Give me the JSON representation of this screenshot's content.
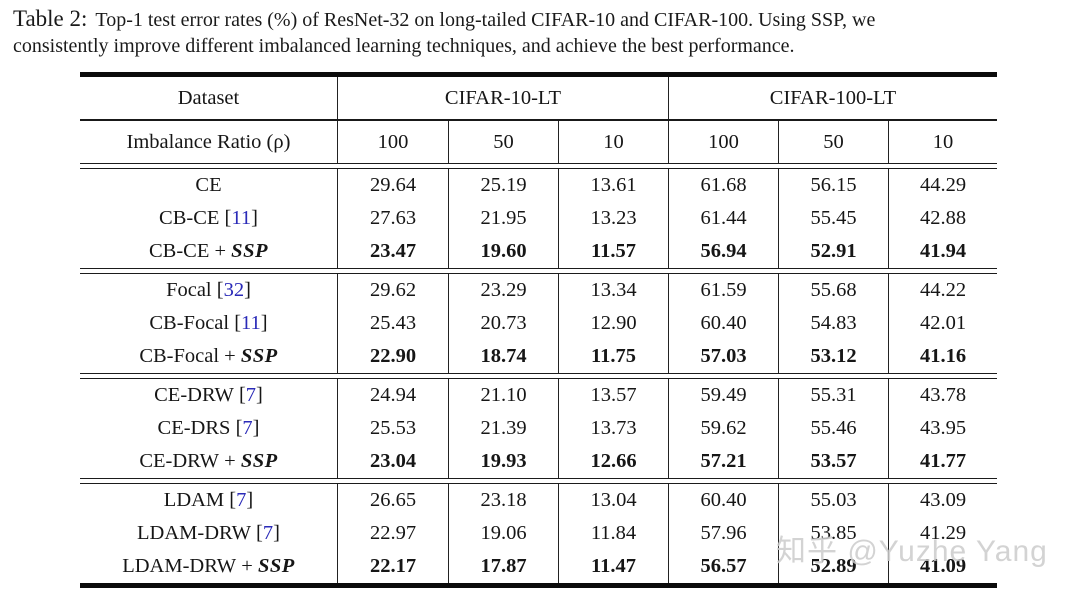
{
  "caption": {
    "label": "Table 2:",
    "line1": "Top-1 test error rates (%) of ResNet-32 on long-tailed CIFAR-10 and CIFAR-100. Using SSP, we",
    "line2": "consistently improve different imbalanced learning techniques, and achieve the best performance."
  },
  "watermark": "知乎 @Yuzhe Yang",
  "colors": {
    "citation_blue": "#2a2ab8",
    "text": "#161616",
    "watermark_gray": "rgba(203,203,203,0.85)"
  },
  "table": {
    "header": {
      "dataset_label": "Dataset",
      "group1": "CIFAR-10-LT",
      "group2": "CIFAR-100-LT",
      "imbalance_label": "Imbalance Ratio (ρ)",
      "ratios": [
        "100",
        "50",
        "10",
        "100",
        "50",
        "10"
      ]
    },
    "plus_sign": "+",
    "ssp_label": "SSP",
    "blocks": [
      {
        "rows": [
          {
            "method": "CE",
            "cite": null,
            "ssp": false,
            "bold": false,
            "values": [
              "29.64",
              "25.19",
              "13.61",
              "61.68",
              "56.15",
              "44.29"
            ]
          },
          {
            "method": "CB-CE",
            "cite": "11",
            "ssp": false,
            "bold": false,
            "values": [
              "27.63",
              "21.95",
              "13.23",
              "61.44",
              "55.45",
              "42.88"
            ]
          },
          {
            "method": "CB-CE",
            "cite": null,
            "ssp": true,
            "bold": true,
            "values": [
              "23.47",
              "19.60",
              "11.57",
              "56.94",
              "52.91",
              "41.94"
            ]
          }
        ]
      },
      {
        "rows": [
          {
            "method": "Focal",
            "cite": "32",
            "ssp": false,
            "bold": false,
            "values": [
              "29.62",
              "23.29",
              "13.34",
              "61.59",
              "55.68",
              "44.22"
            ]
          },
          {
            "method": "CB-Focal",
            "cite": "11",
            "ssp": false,
            "bold": false,
            "values": [
              "25.43",
              "20.73",
              "12.90",
              "60.40",
              "54.83",
              "42.01"
            ]
          },
          {
            "method": "CB-Focal",
            "cite": null,
            "ssp": true,
            "bold": true,
            "values": [
              "22.90",
              "18.74",
              "11.75",
              "57.03",
              "53.12",
              "41.16"
            ]
          }
        ]
      },
      {
        "rows": [
          {
            "method": "CE-DRW",
            "cite": "7",
            "ssp": false,
            "bold": false,
            "values": [
              "24.94",
              "21.10",
              "13.57",
              "59.49",
              "55.31",
              "43.78"
            ]
          },
          {
            "method": "CE-DRS",
            "cite": "7",
            "ssp": false,
            "bold": false,
            "values": [
              "25.53",
              "21.39",
              "13.73",
              "59.62",
              "55.46",
              "43.95"
            ]
          },
          {
            "method": "CE-DRW",
            "cite": null,
            "ssp": true,
            "bold": true,
            "values": [
              "23.04",
              "19.93",
              "12.66",
              "57.21",
              "53.57",
              "41.77"
            ]
          }
        ]
      },
      {
        "rows": [
          {
            "method": "LDAM",
            "cite": "7",
            "ssp": false,
            "bold": false,
            "values": [
              "26.65",
              "23.18",
              "13.04",
              "60.40",
              "55.03",
              "43.09"
            ]
          },
          {
            "method": "LDAM-DRW",
            "cite": "7",
            "ssp": false,
            "bold": false,
            "values": [
              "22.97",
              "19.06",
              "11.84",
              "57.96",
              "53.85",
              "41.29"
            ]
          },
          {
            "method": "LDAM-DRW",
            "cite": null,
            "ssp": true,
            "bold": true,
            "values": [
              "22.17",
              "17.87",
              "11.47",
              "56.57",
              "52.89",
              "41.09"
            ]
          }
        ]
      }
    ]
  }
}
